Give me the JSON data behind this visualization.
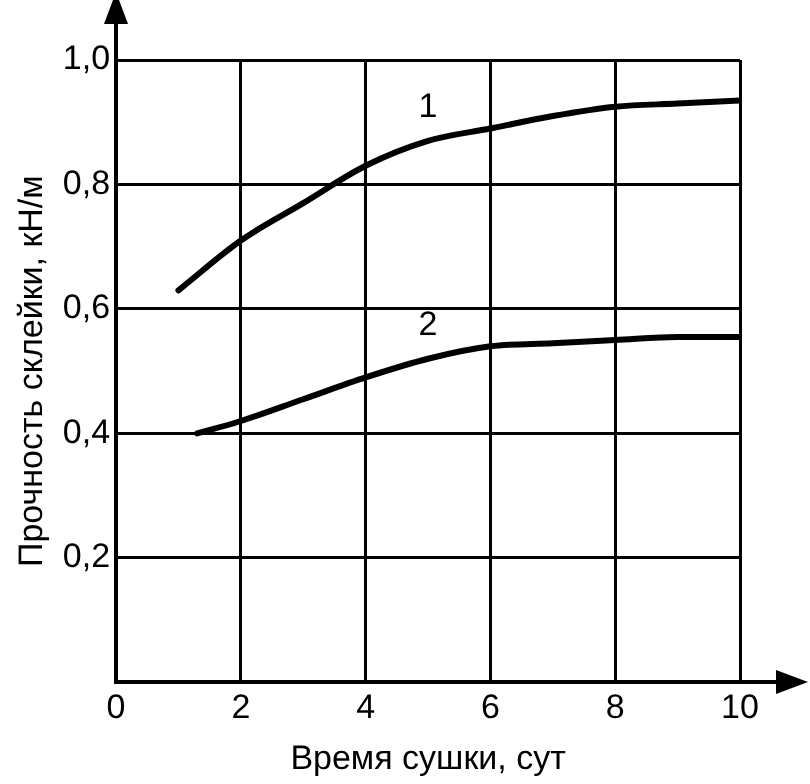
{
  "chart_data": {
    "type": "line",
    "xlabel": "Время сушки, сут",
    "ylabel": "Прочность склейки, кН/м",
    "series": [
      {
        "name": "1",
        "color": "#000000",
        "x": [
          1,
          2,
          3,
          4,
          5,
          6,
          7,
          8,
          9,
          10
        ],
        "values": [
          0.63,
          0.71,
          0.77,
          0.83,
          0.87,
          0.89,
          0.91,
          0.925,
          0.93,
          0.935
        ]
      },
      {
        "name": "2",
        "color": "#000000",
        "x": [
          1.3,
          2,
          3,
          4,
          5,
          6,
          7,
          8,
          9,
          10
        ],
        "values": [
          0.4,
          0.42,
          0.455,
          0.49,
          0.52,
          0.54,
          0.545,
          0.55,
          0.555,
          0.555
        ]
      }
    ],
    "xlim": [
      0,
      10
    ],
    "xticks": [
      0,
      2,
      4,
      6,
      8,
      10
    ],
    "ylim": [
      0,
      1.0
    ],
    "yticks": [
      {
        "value": 0.2,
        "label": "0,2"
      },
      {
        "value": 0.4,
        "label": "0,4"
      },
      {
        "value": 0.6,
        "label": "0,6"
      },
      {
        "value": 0.8,
        "label": "0,8"
      },
      {
        "value": 1.0,
        "label": "1,0"
      }
    ],
    "grid": true,
    "legend": false,
    "marker": "none",
    "line_style": "solid"
  }
}
